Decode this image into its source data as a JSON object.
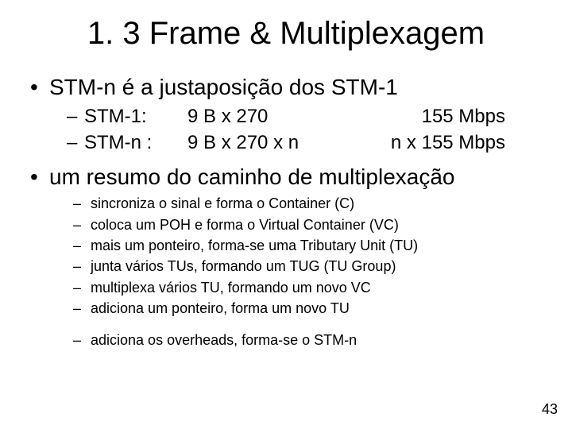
{
  "slide": {
    "title": "1. 3 Frame & Multiplexagem",
    "page_number": "43",
    "background_color": "#ffffff",
    "text_color": "#000000",
    "title_fontsize": 40,
    "body_fontsize_lvl1": 28,
    "body_fontsize_lvl2": 24,
    "body_fontsize_small": 18
  },
  "b1": {
    "text": "STM-n é a justaposição dos STM-1",
    "rows": [
      {
        "label": "STM-1:",
        "col2": "9 B x 270",
        "col3": "155 Mbps"
      },
      {
        "label": "STM-n :",
        "col2": "9 B x 270 x n",
        "col3": "n x 155 Mbps"
      }
    ]
  },
  "b2": {
    "text": "um resumo do caminho de multiplexação",
    "items": [
      "sincroniza o sinal e forma o Container (C)",
      "coloca um POH e forma o Virtual Container (VC)",
      "mais um ponteiro, forma-se uma Tributary Unit (TU)",
      "junta vários TUs, formando um TUG (TU Group)",
      "multiplexa vários TU, formando um novo VC",
      "adiciona um ponteiro, forma um novo TU"
    ],
    "last": "adiciona os overheads, forma-se o STM-n"
  }
}
